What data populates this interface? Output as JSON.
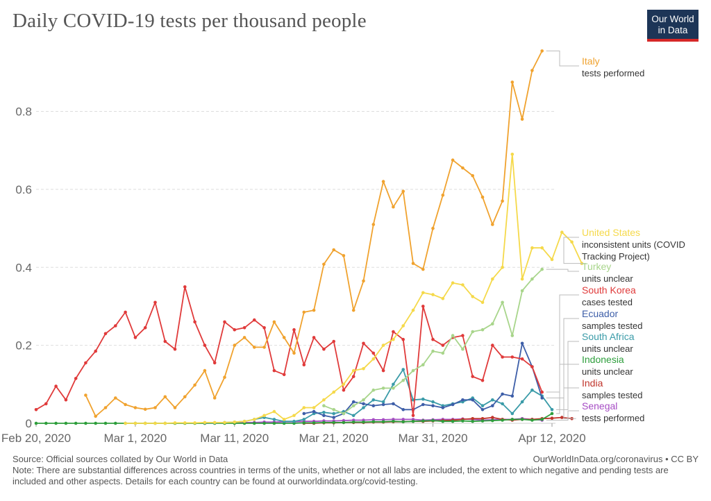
{
  "title": "Daily COVID-19 tests per thousand people",
  "logo": {
    "line1": "Our World",
    "line2": "in Data"
  },
  "footer": {
    "source": "Source: Official sources collated by Our World in Data",
    "right": "OurWorldInData.org/coronavirus • CC BY",
    "note": "Note: There are substantial differences across countries in terms of the units, whether or not all labs are included, the extent to which negative and pending tests are included and other aspects. Details for each country can be found at ourworldindata.org/covid-testing."
  },
  "chart_data": {
    "type": "line",
    "title": "Daily COVID-19 tests per thousand people",
    "xlabel": "",
    "ylabel": "",
    "x_start": "2020-02-20",
    "x_end": "2020-04-12",
    "xticks": [
      {
        "label": "Feb 20, 2020",
        "day": 0
      },
      {
        "label": "Mar 1, 2020",
        "day": 10
      },
      {
        "label": "Mar 11, 2020",
        "day": 20
      },
      {
        "label": "Mar 21, 2020",
        "day": 30
      },
      {
        "label": "Mar 31, 2020",
        "day": 40
      },
      {
        "label": "Apr 12, 2020",
        "day": 52
      }
    ],
    "yticks": [
      0,
      0.2,
      0.4,
      0.6,
      0.8
    ],
    "ylim": [
      0,
      0.97
    ],
    "grid": "horizontal dashed",
    "legend": "right (inline labels)",
    "series": [
      {
        "name": "Italy",
        "sub": "tests performed",
        "color": "#f0a22e",
        "start_day": 5,
        "values": [
          0.072,
          0.018,
          0.04,
          0.065,
          0.048,
          0.04,
          0.036,
          0.04,
          0.068,
          0.04,
          0.068,
          0.098,
          0.135,
          0.065,
          0.118,
          0.2,
          0.22,
          0.195,
          0.195,
          0.26,
          0.22,
          0.18,
          0.285,
          0.29,
          0.408,
          0.445,
          0.43,
          0.29,
          0.365,
          0.51,
          0.62,
          0.555,
          0.595,
          0.41,
          0.395,
          0.5,
          0.585,
          0.675,
          0.655,
          0.635,
          0.58,
          0.51,
          0.57,
          0.875,
          0.78,
          0.905,
          0.955
        ]
      },
      {
        "name": "United States",
        "sub": "inconsistent units (COVID Tracking Project)",
        "color": "#f5d94a",
        "start_day": 9,
        "values": [
          0.0,
          0.0,
          0.0,
          0.0,
          0.0,
          0.001,
          0.001,
          0.001,
          0.002,
          0.002,
          0.002,
          0.003,
          0.005,
          0.01,
          0.02,
          0.03,
          0.01,
          0.02,
          0.04,
          0.04,
          0.06,
          0.08,
          0.1,
          0.135,
          0.14,
          0.165,
          0.2,
          0.215,
          0.25,
          0.29,
          0.335,
          0.33,
          0.32,
          0.36,
          0.355,
          0.325,
          0.31,
          0.37,
          0.4,
          0.69,
          0.37,
          0.45,
          0.45,
          0.42,
          0.49,
          0.465,
          0.41
        ]
      },
      {
        "name": "Turkey",
        "sub": "units unclear",
        "color": "#a8d58b",
        "start_day": 29,
        "values": [
          0.045,
          0.035,
          0.025,
          0.045,
          0.06,
          0.085,
          0.09,
          0.09,
          0.11,
          0.135,
          0.15,
          0.185,
          0.18,
          0.225,
          0.19,
          0.235,
          0.24,
          0.255,
          0.31,
          0.225,
          0.34,
          0.37,
          0.395
        ]
      },
      {
        "name": "South Korea",
        "sub": "cases tested",
        "color": "#e03a3a",
        "start_day": 0,
        "values": [
          0.035,
          0.05,
          0.095,
          0.06,
          0.115,
          0.155,
          0.185,
          0.23,
          0.25,
          0.285,
          0.22,
          0.245,
          0.31,
          0.21,
          0.19,
          0.35,
          0.26,
          0.2,
          0.155,
          0.26,
          0.24,
          0.245,
          0.265,
          0.245,
          0.135,
          0.125,
          0.24,
          0.15,
          0.22,
          0.19,
          0.21,
          0.085,
          0.12,
          0.205,
          0.18,
          0.135,
          0.235,
          0.215,
          0.02,
          0.3,
          0.215,
          0.2,
          0.22,
          0.225,
          0.12,
          0.11,
          0.2,
          0.17,
          0.17,
          0.165,
          0.145,
          0.08
        ]
      },
      {
        "name": "Ecuador",
        "sub": "samples tested",
        "color": "#3d5ea8",
        "start_day": 27,
        "values": [
          0.025,
          0.03,
          0.02,
          0.015,
          0.025,
          0.055,
          0.05,
          0.045,
          0.048,
          0.05,
          0.035,
          0.035,
          0.048,
          0.045,
          0.04,
          0.048,
          0.06,
          0.06,
          0.035,
          0.045,
          0.075,
          0.07,
          0.205,
          0.145,
          0.065
        ]
      },
      {
        "name": "South Africa",
        "sub": "units unclear",
        "color": "#3a9ba8",
        "start_day": 17,
        "values": [
          0.001,
          0.001,
          0.002,
          0.003,
          0.005,
          0.01,
          0.015,
          0.01,
          0.005,
          0.005,
          0.01,
          0.025,
          0.028,
          0.025,
          0.03,
          0.02,
          0.04,
          0.06,
          0.055,
          0.1,
          0.138,
          0.06,
          0.062,
          0.055,
          0.045,
          0.05,
          0.055,
          0.065,
          0.045,
          0.06,
          0.05,
          0.025,
          0.055,
          0.085,
          0.07,
          0.035
        ]
      },
      {
        "name": "Indonesia",
        "sub": "units unclear",
        "color": "#2e9e3c",
        "start_day": 0,
        "values": [
          0.0,
          0.0,
          0.0,
          0.0,
          0.0,
          0.0,
          0.0,
          0.0,
          0.0,
          0.0,
          0.0,
          0.0,
          0.0,
          0.0,
          0.0,
          0.0,
          0.0,
          0.0,
          0.0,
          0.0,
          0.0,
          0.0,
          0.0,
          0.0,
          0.0,
          0.0,
          0.0,
          0.001,
          0.001,
          0.002,
          0.002,
          0.002,
          0.003,
          0.003,
          0.004,
          0.004,
          0.005,
          0.004,
          0.005,
          0.006,
          0.007,
          0.005,
          0.005,
          0.006,
          0.005,
          0.006,
          0.007,
          0.008,
          0.01,
          0.01,
          0.008,
          0.01,
          0.025
        ]
      },
      {
        "name": "India",
        "sub": "samples tested",
        "color": "#c0342b",
        "start_day": 27,
        "values": [
          0.0,
          0.0,
          0.001,
          0.001,
          0.002,
          0.002,
          0.002,
          0.003,
          0.003,
          0.004,
          0.004,
          0.005,
          0.005,
          0.006,
          0.007,
          0.008,
          0.01,
          0.012,
          0.012,
          0.015,
          0.01,
          0.008,
          0.01,
          0.01,
          0.012,
          0.013,
          0.015,
          0.012
        ]
      },
      {
        "name": "Senegal",
        "sub": "tests performed",
        "color": "#a64cc4",
        "start_day": 17,
        "values": [
          0.0,
          0.001,
          0.001,
          0.002,
          0.002,
          0.002,
          0.003,
          0.003,
          0.004,
          0.004,
          0.005,
          0.005,
          0.006,
          0.006,
          0.007,
          0.008,
          0.008,
          0.009,
          0.009,
          0.01,
          0.01,
          0.01,
          0.008,
          0.009,
          0.01,
          0.01,
          0.011,
          0.01,
          0.008,
          0.009,
          0.01,
          0.01,
          0.012,
          0.01,
          0.008
        ]
      }
    ]
  }
}
